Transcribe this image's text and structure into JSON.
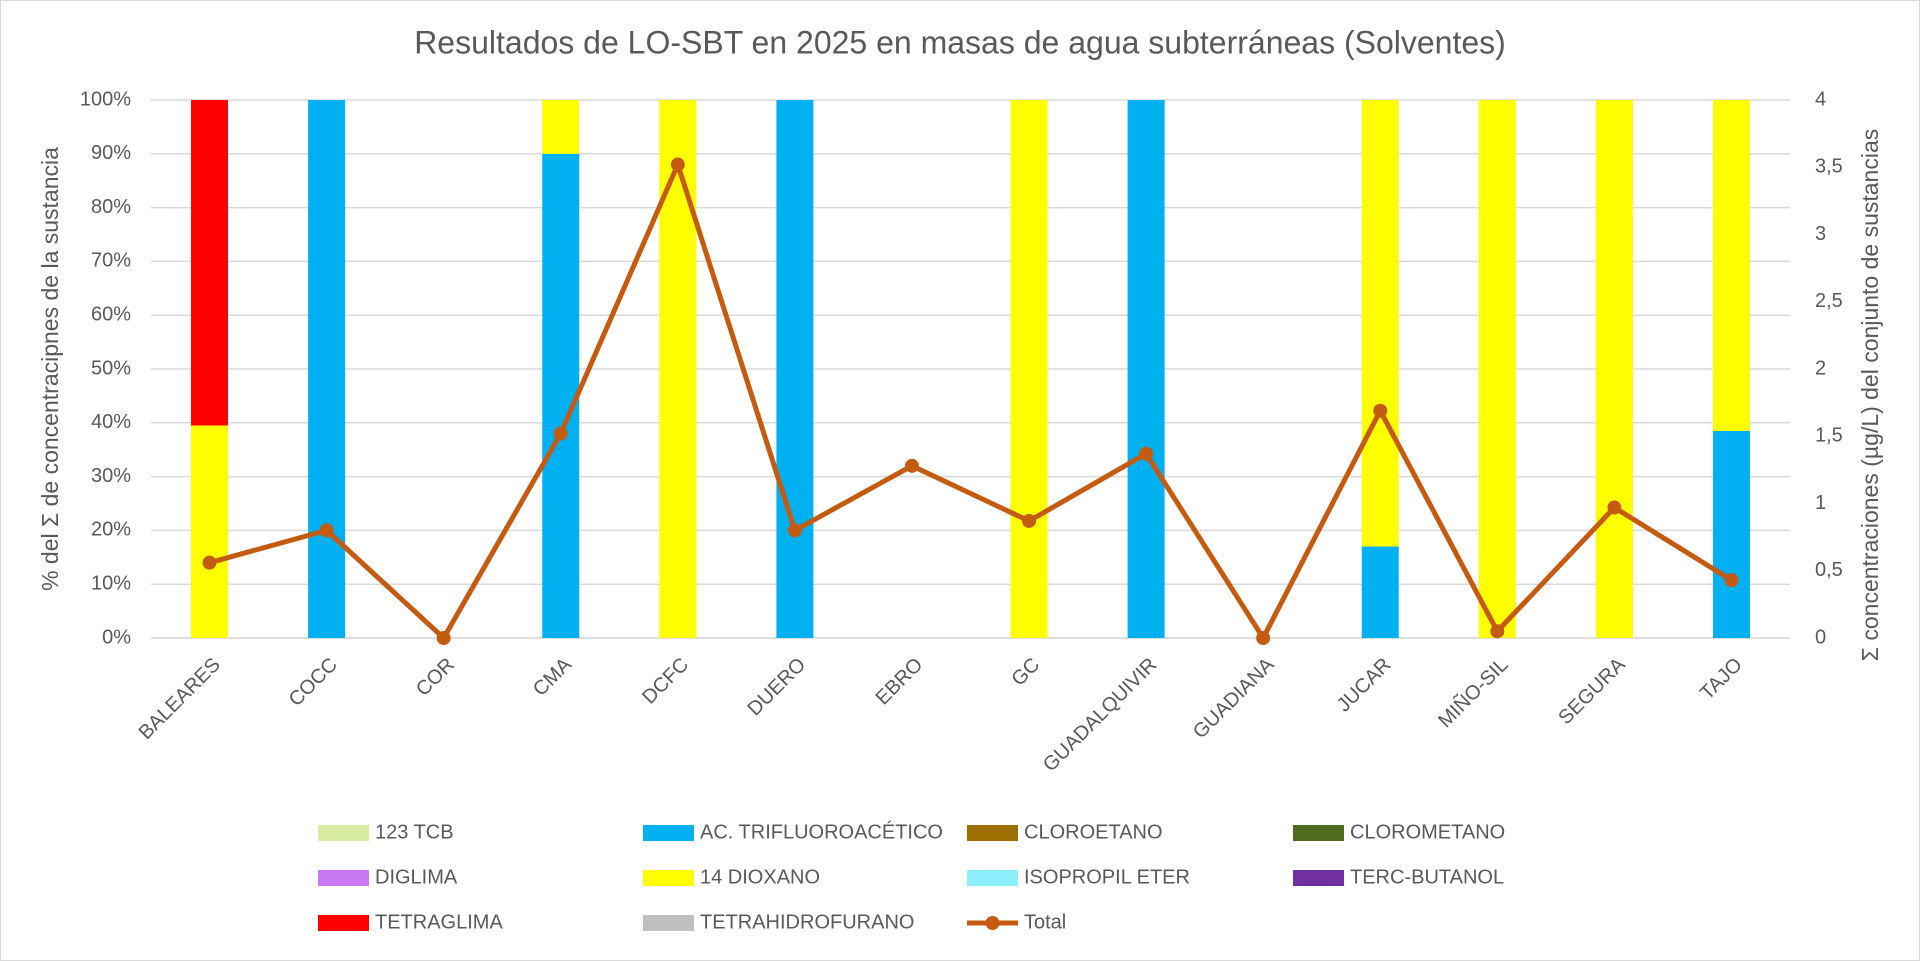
{
  "chart_data": {
    "type": "bar",
    "stacked": true,
    "title": "Resultados de LO-SBT en 2025 en masas de agua subterráneas (Solventes)",
    "y_label": "% del Σ de concentracipnes de la sustancia",
    "y2_label": "Σ concentraciones (µg/L) del conjunto de sustancias",
    "categories": [
      "BALEARES",
      "COCC",
      "COR",
      "CMA",
      "DCFC",
      "DUERO",
      "EBRO",
      "GC",
      "GUADALQUIVIR",
      "GUADIANA",
      "JUCAR",
      "MIÑO-SIL",
      "SEGURA",
      "TAJO"
    ],
    "ylim": [
      0,
      100
    ],
    "yticks": [
      {
        "value": 0,
        "label": "0%"
      },
      {
        "value": 10,
        "label": "10%"
      },
      {
        "value": 20,
        "label": "20%"
      },
      {
        "value": 30,
        "label": "30%"
      },
      {
        "value": 40,
        "label": "40%"
      },
      {
        "value": 50,
        "label": "50%"
      },
      {
        "value": 60,
        "label": "60%"
      },
      {
        "value": 70,
        "label": "70%"
      },
      {
        "value": 80,
        "label": "80%"
      },
      {
        "value": 90,
        "label": "90%"
      },
      {
        "value": 100,
        "label": "100%"
      }
    ],
    "y2lim": [
      0,
      4
    ],
    "y2ticks": [
      0,
      {
        "value": 0.5,
        "label": "0,5"
      },
      1,
      {
        "value": 1.5,
        "label": "1,5"
      },
      2,
      {
        "value": 2.5,
        "label": "2,5"
      },
      3,
      {
        "value": 3.5,
        "label": "3,5"
      },
      4
    ],
    "grid": true,
    "legend": "bottom",
    "series": [
      {
        "name": "123 TCB",
        "color": "#d7eca0",
        "values": [
          0,
          0,
          0,
          0,
          0,
          0,
          0,
          0,
          0,
          0,
          0,
          0,
          0,
          0
        ]
      },
      {
        "name": "AC. TRIFLUOROACÉTICO",
        "color": "#00b0f0",
        "values": [
          0,
          100,
          0,
          90,
          0,
          100,
          0,
          0,
          100,
          0,
          17,
          0,
          0,
          38.5
        ]
      },
      {
        "name": "CLOROETANO",
        "color": "#9c6f00",
        "values": [
          0,
          0,
          0,
          0,
          0,
          0,
          0,
          0,
          0,
          0,
          0,
          0,
          0,
          0
        ]
      },
      {
        "name": "CLOROMETANO",
        "color": "#4f6b1e",
        "values": [
          0,
          0,
          0,
          0,
          0,
          0,
          0,
          0,
          0,
          0,
          0,
          0,
          0,
          0
        ]
      },
      {
        "name": "DIGLIMA",
        "color": "#c879f2",
        "values": [
          0,
          0,
          0,
          0,
          0,
          0,
          0,
          0,
          0,
          0,
          0,
          0,
          0,
          0
        ]
      },
      {
        "name": "14 DIOXANO",
        "color": "#ffff00",
        "values": [
          39.5,
          0,
          0,
          10,
          100,
          0,
          0,
          100,
          0,
          0,
          83,
          100,
          100,
          61.5
        ]
      },
      {
        "name": "ISOPROPIL ETER",
        "color": "#8deffb",
        "values": [
          0,
          0,
          0,
          0,
          0,
          0,
          0,
          0,
          0,
          0,
          0,
          0,
          0,
          0
        ]
      },
      {
        "name": "TERC-BUTANOL",
        "color": "#7030a0",
        "values": [
          0,
          0,
          0,
          0,
          0,
          0,
          0,
          0,
          0,
          0,
          0,
          0,
          0,
          0
        ]
      },
      {
        "name": "TETRAGLIMA",
        "color": "#ff0000",
        "values": [
          60.5,
          0,
          0,
          0,
          0,
          0,
          0,
          0,
          0,
          0,
          0,
          0,
          0,
          0
        ]
      },
      {
        "name": "TETRAHIDROFURANO",
        "color": "#bfbfbf",
        "values": [
          0,
          0,
          0,
          0,
          0,
          0,
          0,
          0,
          0,
          0,
          0,
          0,
          0,
          0
        ]
      },
      {
        "name": "Total",
        "color": "#c55a11",
        "type": "line",
        "axis": "y2",
        "values": [
          0.56,
          0.8,
          0,
          1.52,
          3.52,
          0.8,
          1.28,
          0.87,
          1.37,
          0,
          1.69,
          0.05,
          0.97,
          0.43
        ]
      }
    ]
  }
}
